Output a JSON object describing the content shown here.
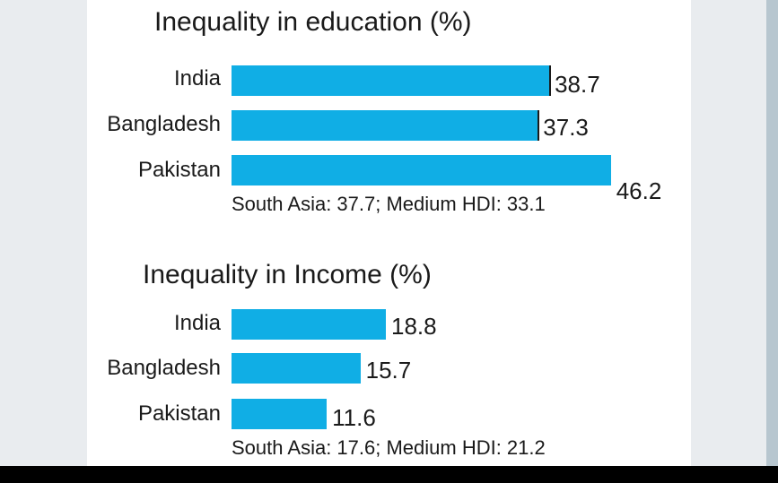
{
  "chart_data": [
    {
      "type": "bar",
      "orientation": "horizontal",
      "title": "Inequality in education (%)",
      "categories": [
        "India",
        "Bangladesh",
        "Pakistan"
      ],
      "values": [
        38.7,
        37.3,
        46.2
      ],
      "value_labels": [
        "38.7",
        "37.3",
        "46.2"
      ],
      "note": "South Asia: 37.7; Medium HDI: 33.1",
      "bar_color": "#10aee5"
    },
    {
      "type": "bar",
      "orientation": "horizontal",
      "title": "Inequality in Income (%)",
      "categories": [
        "India",
        "Bangladesh",
        "Pakistan"
      ],
      "values": [
        18.8,
        15.7,
        11.6
      ],
      "value_labels": [
        "18.8",
        "15.7",
        "11.6"
      ],
      "note": "South Asia: 17.6; Medium HDI: 21.2",
      "bar_color": "#10aee5"
    }
  ]
}
